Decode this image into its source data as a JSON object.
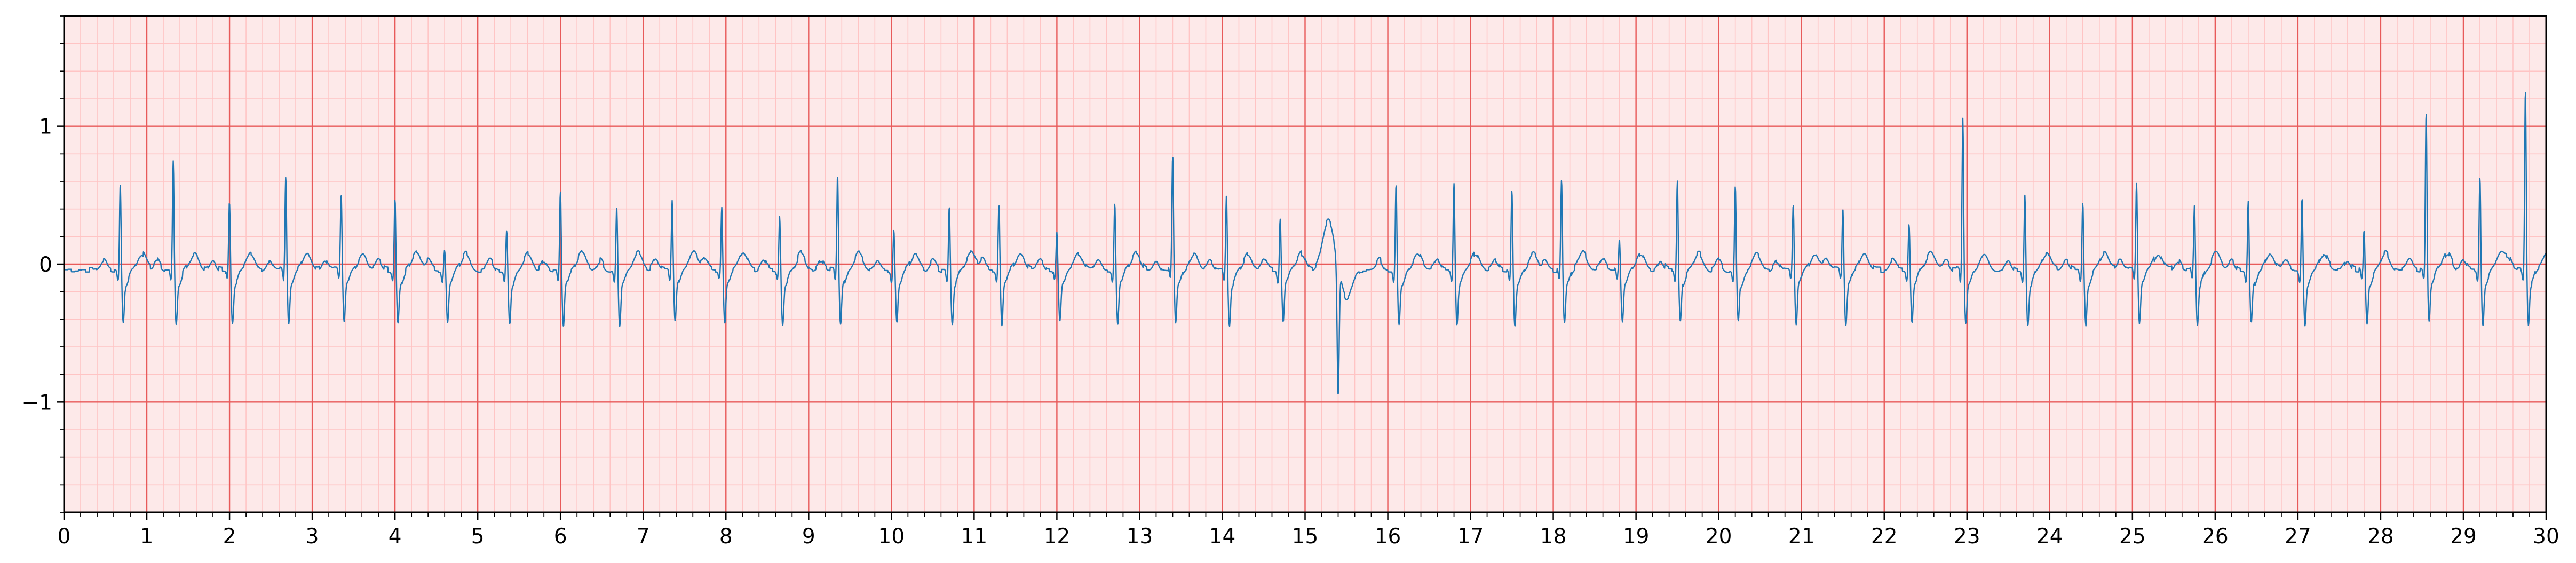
{
  "chart_data": {
    "type": "line",
    "title": "",
    "xlabel": "",
    "ylabel": "",
    "xlim": [
      0,
      30
    ],
    "ylim": [
      -1.8,
      1.8
    ],
    "x_ticks": [
      0,
      1,
      2,
      3,
      4,
      5,
      6,
      7,
      8,
      9,
      10,
      11,
      12,
      13,
      14,
      15,
      16,
      17,
      18,
      19,
      20,
      21,
      22,
      23,
      24,
      25,
      26,
      27,
      28,
      29,
      30
    ],
    "x_tick_labels": [
      "0",
      "1",
      "2",
      "3",
      "4",
      "5",
      "6",
      "7",
      "8",
      "9",
      "10",
      "11",
      "12",
      "13",
      "14",
      "15",
      "16",
      "17",
      "18",
      "19",
      "20",
      "21",
      "22",
      "23",
      "24",
      "25",
      "26",
      "27",
      "28",
      "29",
      "30"
    ],
    "y_ticks": [
      -1,
      0,
      1
    ],
    "y_tick_labels": [
      "−1",
      "0",
      "1"
    ],
    "grid": {
      "major": true,
      "major_step_x": 1,
      "major_step_y": 1,
      "major_color": "#e85a5a",
      "minor": true,
      "minor_step_x": 0.2,
      "minor_step_y": 0.2,
      "minor_color": "#ffc4c4"
    },
    "background_color": "#fde9e9",
    "legend": "none",
    "series": [
      {
        "color": "#1f77b4",
        "beats": [
          {
            "t": 0.68,
            "r": 0.6
          },
          {
            "t": 1.32,
            "r": 0.75
          },
          {
            "t": 2.0,
            "r": 0.45
          },
          {
            "t": 2.68,
            "r": 0.65
          },
          {
            "t": 3.35,
            "r": 0.5
          },
          {
            "t": 4.0,
            "r": 0.48
          },
          {
            "t": 4.6,
            "r": 0.12
          },
          {
            "t": 5.35,
            "r": 0.25
          },
          {
            "t": 6.0,
            "r": 0.55
          },
          {
            "t": 6.68,
            "r": 0.43
          },
          {
            "t": 7.35,
            "r": 0.45
          },
          {
            "t": 7.95,
            "r": 0.4
          },
          {
            "t": 8.65,
            "r": 0.35
          },
          {
            "t": 9.35,
            "r": 0.65
          },
          {
            "t": 10.03,
            "r": 0.27
          },
          {
            "t": 10.7,
            "r": 0.43
          },
          {
            "t": 11.3,
            "r": 0.45
          },
          {
            "t": 12.0,
            "r": 0.22
          },
          {
            "t": 12.7,
            "r": 0.45
          },
          {
            "t": 13.4,
            "r": 0.78
          },
          {
            "t": 14.05,
            "r": 0.52
          },
          {
            "t": 14.7,
            "r": 0.32
          },
          {
            "t": 15.4,
            "r": -1.05
          },
          {
            "t": 16.1,
            "r": 0.6
          },
          {
            "t": 16.8,
            "r": 0.58
          },
          {
            "t": 17.5,
            "r": 0.53
          },
          {
            "t": 18.1,
            "r": 0.62
          },
          {
            "t": 18.8,
            "r": 0.2
          },
          {
            "t": 19.5,
            "r": 0.62
          },
          {
            "t": 20.2,
            "r": 0.58
          },
          {
            "t": 20.9,
            "r": 0.42
          },
          {
            "t": 21.5,
            "r": 0.42
          },
          {
            "t": 22.3,
            "r": 0.3
          },
          {
            "t": 22.95,
            "r": 1.08
          },
          {
            "t": 23.7,
            "r": 0.52
          },
          {
            "t": 24.4,
            "r": 0.45
          },
          {
            "t": 25.05,
            "r": 0.6
          },
          {
            "t": 25.75,
            "r": 0.45
          },
          {
            "t": 26.4,
            "r": 0.45
          },
          {
            "t": 27.05,
            "r": 0.5
          },
          {
            "t": 27.8,
            "r": 0.27
          },
          {
            "t": 28.55,
            "r": 1.12
          },
          {
            "t": 29.2,
            "r": 0.65
          },
          {
            "t": 29.75,
            "r": 1.27
          }
        ]
      }
    ]
  }
}
